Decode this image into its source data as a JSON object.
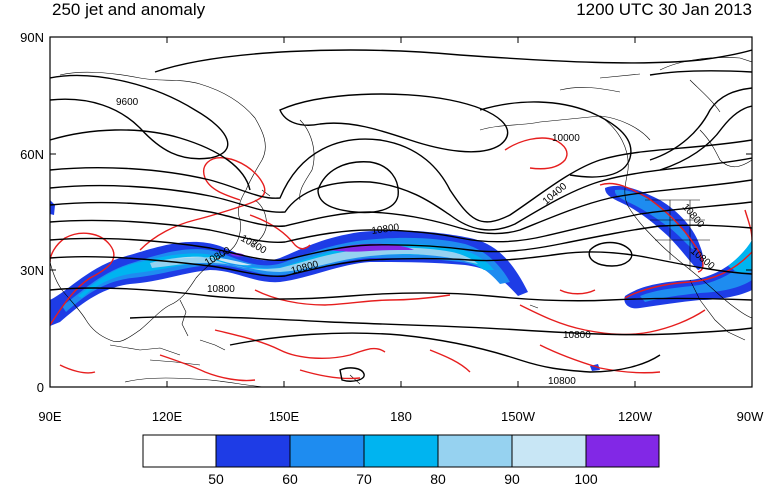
{
  "title_left": "250 jet and anomaly",
  "title_right": "1200 UTC 30 Jan 2013",
  "map": {
    "lat_ticks": [
      "90N",
      "60N",
      "30N",
      "0"
    ],
    "lon_ticks": [
      "90E",
      "120E",
      "150E",
      "180",
      "150W",
      "120W",
      "90W"
    ],
    "contour_labels": [
      "9600",
      "10000",
      "10400",
      "10800",
      "10800",
      "10800",
      "10800",
      "10800",
      "10800",
      "10800",
      "10800",
      "10800"
    ]
  },
  "colorbar": {
    "labels": [
      "50",
      "60",
      "70",
      "80",
      "90",
      "100"
    ],
    "colors": [
      "#ffffff",
      "#1e3ce6",
      "#1e8cf0",
      "#00b4f0",
      "#96d2f0",
      "#c8e6f5",
      "#8228e6"
    ]
  },
  "colors": {
    "height_contour": "#000000",
    "anomaly_contour": "#e61e1e",
    "coastline": "#000000"
  }
}
